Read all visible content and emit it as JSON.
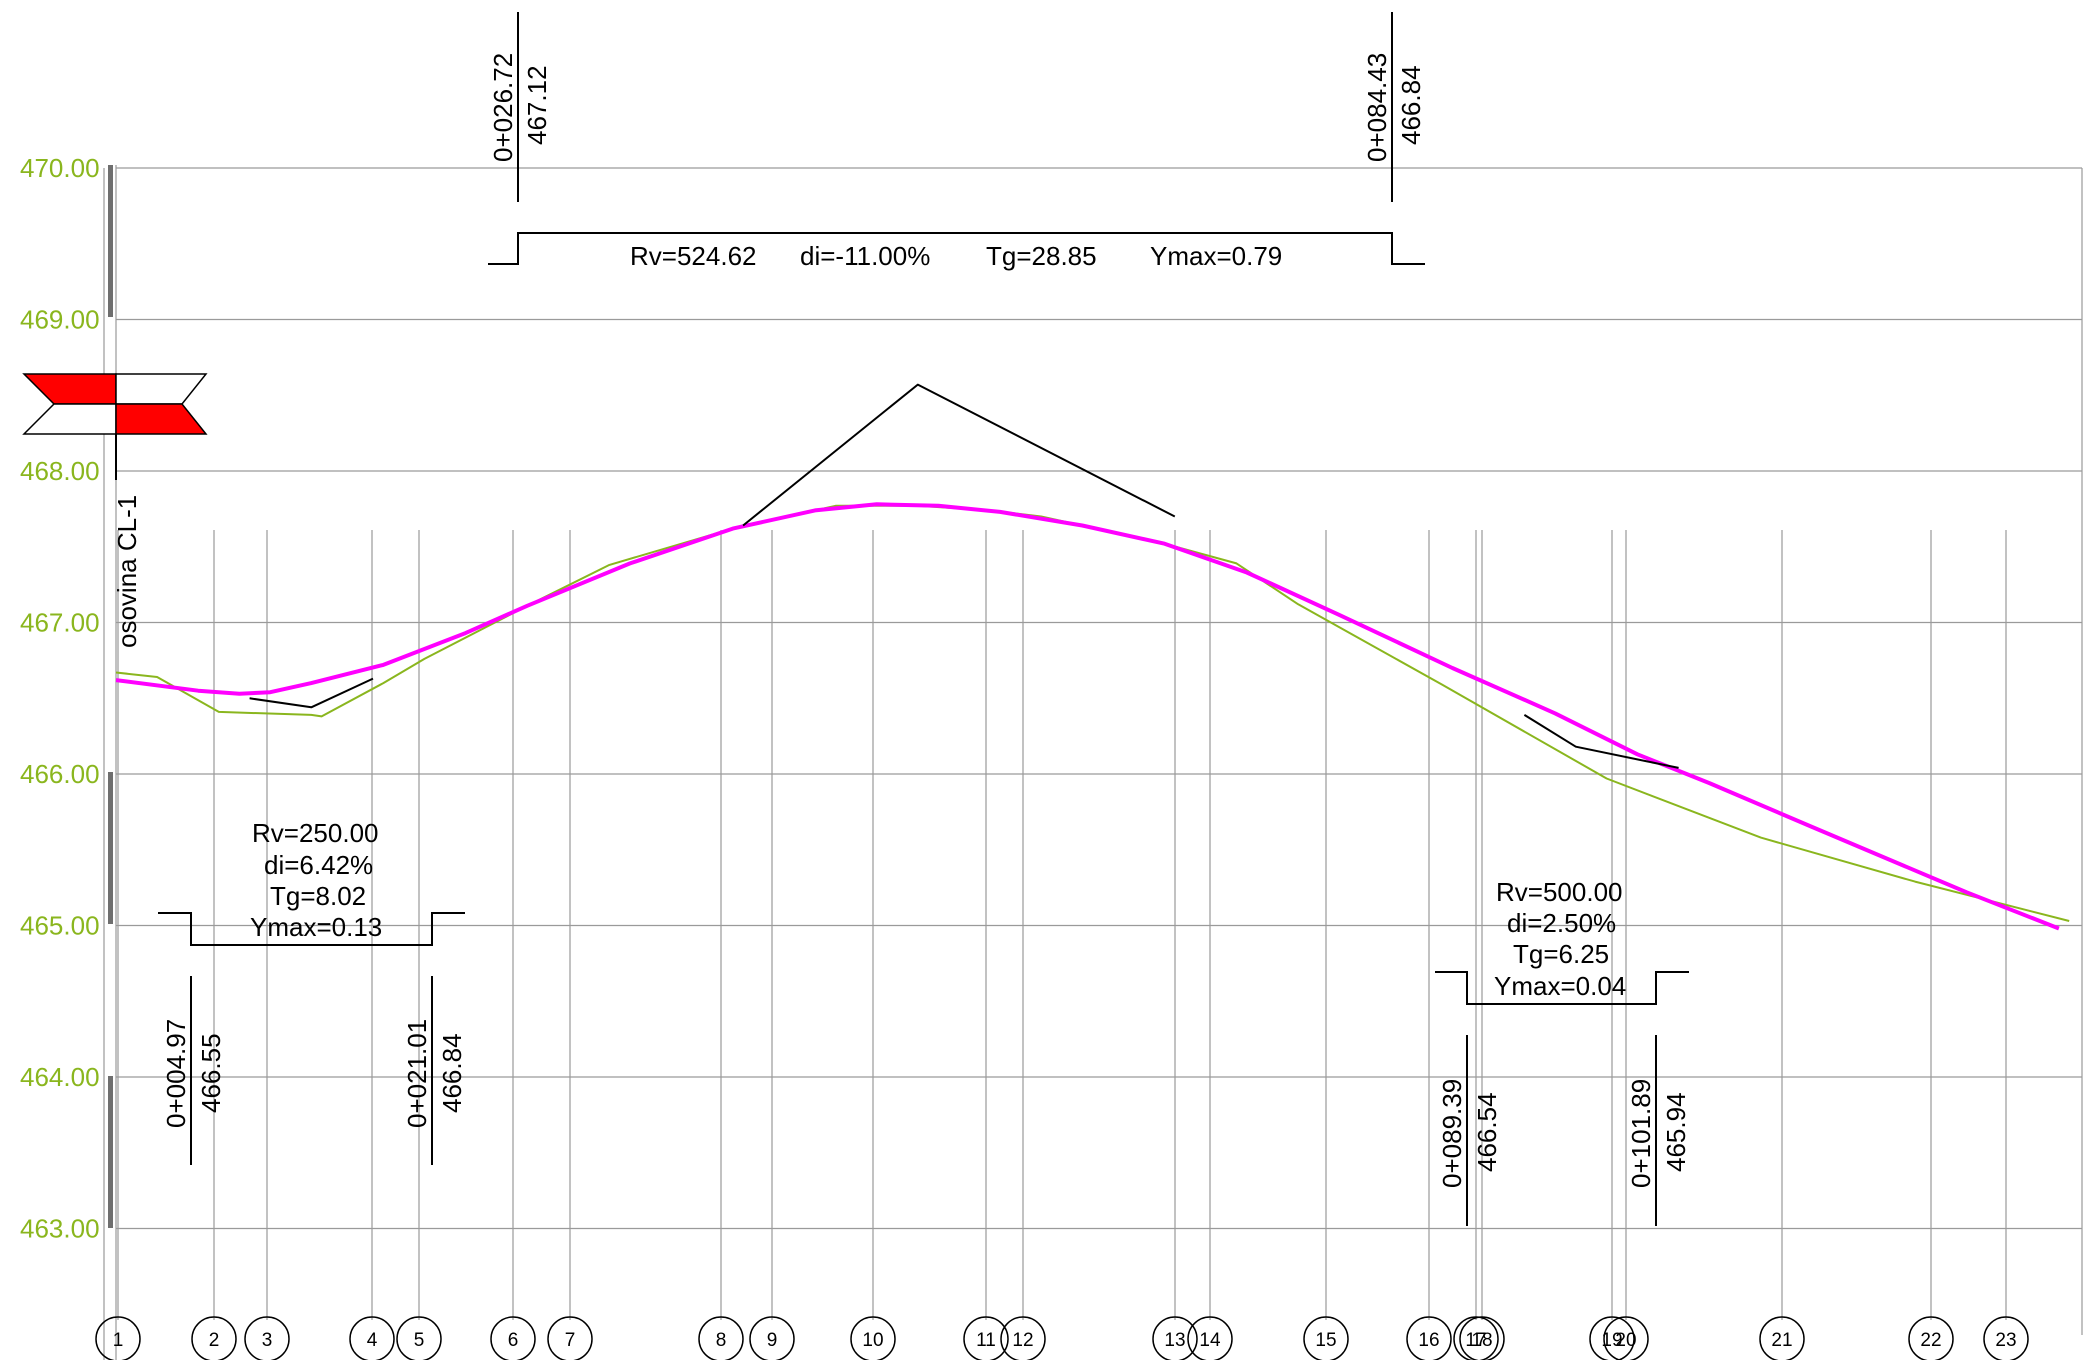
{
  "colors": {
    "axis_label": "#8ab61e",
    "terrain_line": "#8ab61e",
    "design_line": "#ff00ff",
    "construction_line": "#000000",
    "grid": "#9a9a9a",
    "marker_fill": "#ff0000"
  },
  "elevation_axis": {
    "labels": [
      "470.00",
      "469.00",
      "468.00",
      "467.00",
      "466.00",
      "465.00",
      "464.00",
      "463.00"
    ],
    "values": [
      470,
      469,
      468,
      467,
      466,
      465,
      464,
      463
    ]
  },
  "axis_name": "osovina CL-1",
  "vertical_curves": [
    {
      "rv": "Rv=524.62",
      "di": "di=-11.00%",
      "tg": "Tg=28.85",
      "ymax": "Ymax=0.79",
      "start_station": "0+026.72",
      "start_elevation": "467.12",
      "end_station": "0+084.43",
      "end_elevation": "466.84"
    },
    {
      "rv": "Rv=250.00",
      "di": "di=6.42%",
      "tg": "Tg=8.02",
      "ymax": "Ymax=0.13",
      "start_station": "0+004.97",
      "start_elevation": "466.55",
      "end_station": "0+021.01",
      "end_elevation": "466.84"
    },
    {
      "rv": "Rv=500.00",
      "di": "di=2.50%",
      "tg": "Tg=6.25",
      "ymax": "Ymax=0.04",
      "start_station": "0+089.39",
      "start_elevation": "466.54",
      "end_station": "0+101.89",
      "end_elevation": "465.94"
    }
  ],
  "stations": [
    "1",
    "2",
    "3",
    "4",
    "5",
    "6",
    "7",
    "8",
    "9",
    "10",
    "11",
    "12",
    "13",
    "14",
    "15",
    "16",
    "17",
    "18",
    "19",
    "20",
    "21",
    "22",
    "23"
  ],
  "chart_data": {
    "type": "line",
    "ylim": [
      463,
      470
    ],
    "series": [
      {
        "values": [
          [
            0,
            466.67
          ],
          [
            4,
            466.64
          ],
          [
            10,
            466.41
          ],
          [
            19,
            466.39
          ],
          [
            20,
            466.38
          ],
          [
            26,
            466.6
          ],
          [
            30,
            466.76
          ],
          [
            40,
            467.11
          ],
          [
            48,
            467.38
          ],
          [
            60,
            467.62
          ],
          [
            70,
            467.77
          ],
          [
            78,
            467.77
          ],
          [
            85,
            467.74
          ],
          [
            90,
            467.7
          ],
          [
            102,
            467.52
          ],
          [
            109,
            467.39
          ],
          [
            115,
            467.12
          ],
          [
            129,
            466.59
          ],
          [
            145,
            465.97
          ],
          [
            160,
            465.58
          ],
          [
            175,
            465.29
          ],
          [
            190,
            465.03
          ]
        ]
      },
      {
        "values": [
          [
            0,
            466.62
          ],
          [
            8,
            466.55
          ],
          [
            12,
            466.53
          ],
          [
            15,
            466.54
          ],
          [
            19,
            466.6
          ],
          [
            26,
            466.72
          ],
          [
            34,
            466.93
          ],
          [
            40,
            467.11
          ],
          [
            50,
            467.39
          ],
          [
            60,
            467.62
          ],
          [
            68,
            467.74
          ],
          [
            74,
            467.78
          ],
          [
            80,
            467.77
          ],
          [
            86,
            467.73
          ],
          [
            94,
            467.64
          ],
          [
            102,
            467.52
          ],
          [
            110,
            467.33
          ],
          [
            119,
            467.05
          ],
          [
            130,
            466.7
          ],
          [
            140,
            466.4
          ],
          [
            148,
            466.13
          ],
          [
            155,
            465.94
          ],
          [
            165,
            465.65
          ],
          [
            180,
            465.22
          ],
          [
            189,
            464.98
          ]
        ]
      },
      {
        "values": [
          [
            61,
            467.64
          ],
          [
            78,
            468.57
          ],
          [
            103,
            467.7
          ]
        ]
      },
      {
        "values": [
          [
            13,
            466.5
          ],
          [
            19,
            466.44
          ],
          [
            25,
            466.63
          ]
        ]
      },
      {
        "values": [
          [
            137,
            466.39
          ],
          [
            142,
            466.18
          ],
          [
            152,
            466.04
          ]
        ]
      }
    ]
  }
}
